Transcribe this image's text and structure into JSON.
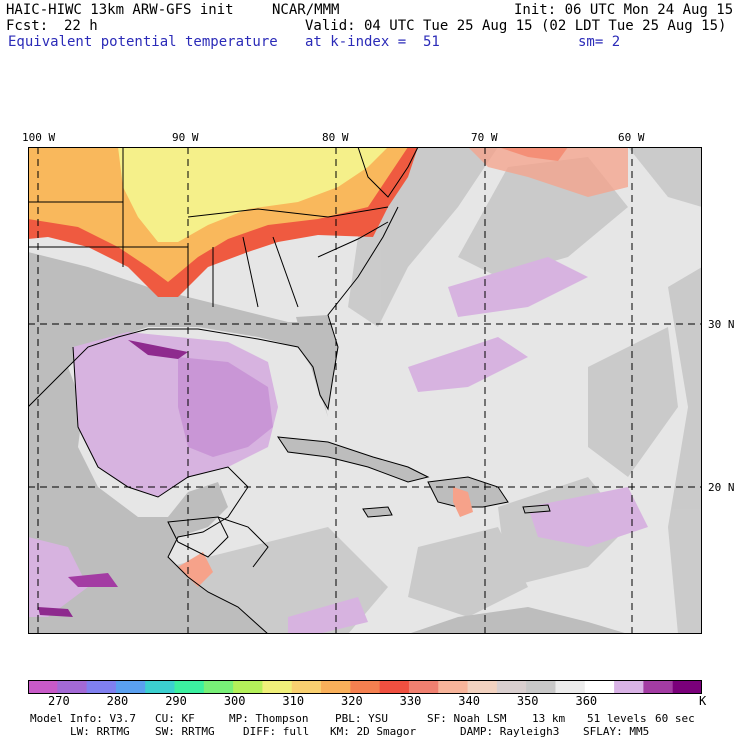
{
  "header": {
    "model": "HAIC-HIWC 13km ARW-GFS init",
    "org": "NCAR/MMM",
    "init": "Init: 06 UTC Mon 24 Aug 15",
    "fcst_label": "Fcst:",
    "fcst_value": "22 h",
    "valid": "Valid: 04 UTC Tue 25 Aug 15 (02 LDT Tue 25 Aug 15)",
    "field": "Equivalent potential temperature",
    "level": "at k-index =  51",
    "smoothing": "sm= 2"
  },
  "map": {
    "lon_labels": [
      "100 W",
      "90 W",
      "80 W",
      "70 W",
      "60 W"
    ],
    "lat_labels": [
      "30 N",
      "20 N"
    ],
    "colors": {
      "ocean": "#e6e6e6",
      "land_gray": "#bdbdbd",
      "warm_yellow": "#f5f08a",
      "orange": "#f9b85c",
      "red": "#ef5a40",
      "salmon": "#f6a28a",
      "light_purple": "#d7b3e0",
      "purple": "#c38ad2",
      "dark_purple": "#8e2a8e"
    }
  },
  "colorbar": {
    "unit": "K",
    "labels": [
      "270",
      "280",
      "290",
      "300",
      "310",
      "320",
      "330",
      "340",
      "350",
      "360"
    ],
    "swatches": [
      "#c85ac8",
      "#a369d6",
      "#8080f0",
      "#5aa0f0",
      "#3cd0d0",
      "#3cf0a0",
      "#78f078",
      "#b4f05a",
      "#f0f07a",
      "#f9d070",
      "#f9b05a",
      "#f58050",
      "#f05040",
      "#f08070",
      "#f7b49a",
      "#f2d2c0",
      "#d9cfcf",
      "#c8c8c8",
      "#ececec",
      "#ffffff",
      "#d9b3e6",
      "#a33ca3",
      "#7a007a"
    ]
  },
  "footer": {
    "row1": [
      "Model Info: V3.7",
      "CU: KF",
      "MP: Thompson",
      "PBL: YSU",
      "SF: Noah LSM",
      "13 km",
      "51 levels",
      "60 sec"
    ],
    "row2": [
      "LW: RRTMG",
      "SW: RRTMG",
      "DIFF: full",
      "KM: 2D Smagor",
      "DAMP: Rayleigh3",
      "SFLAY: MM5"
    ]
  }
}
